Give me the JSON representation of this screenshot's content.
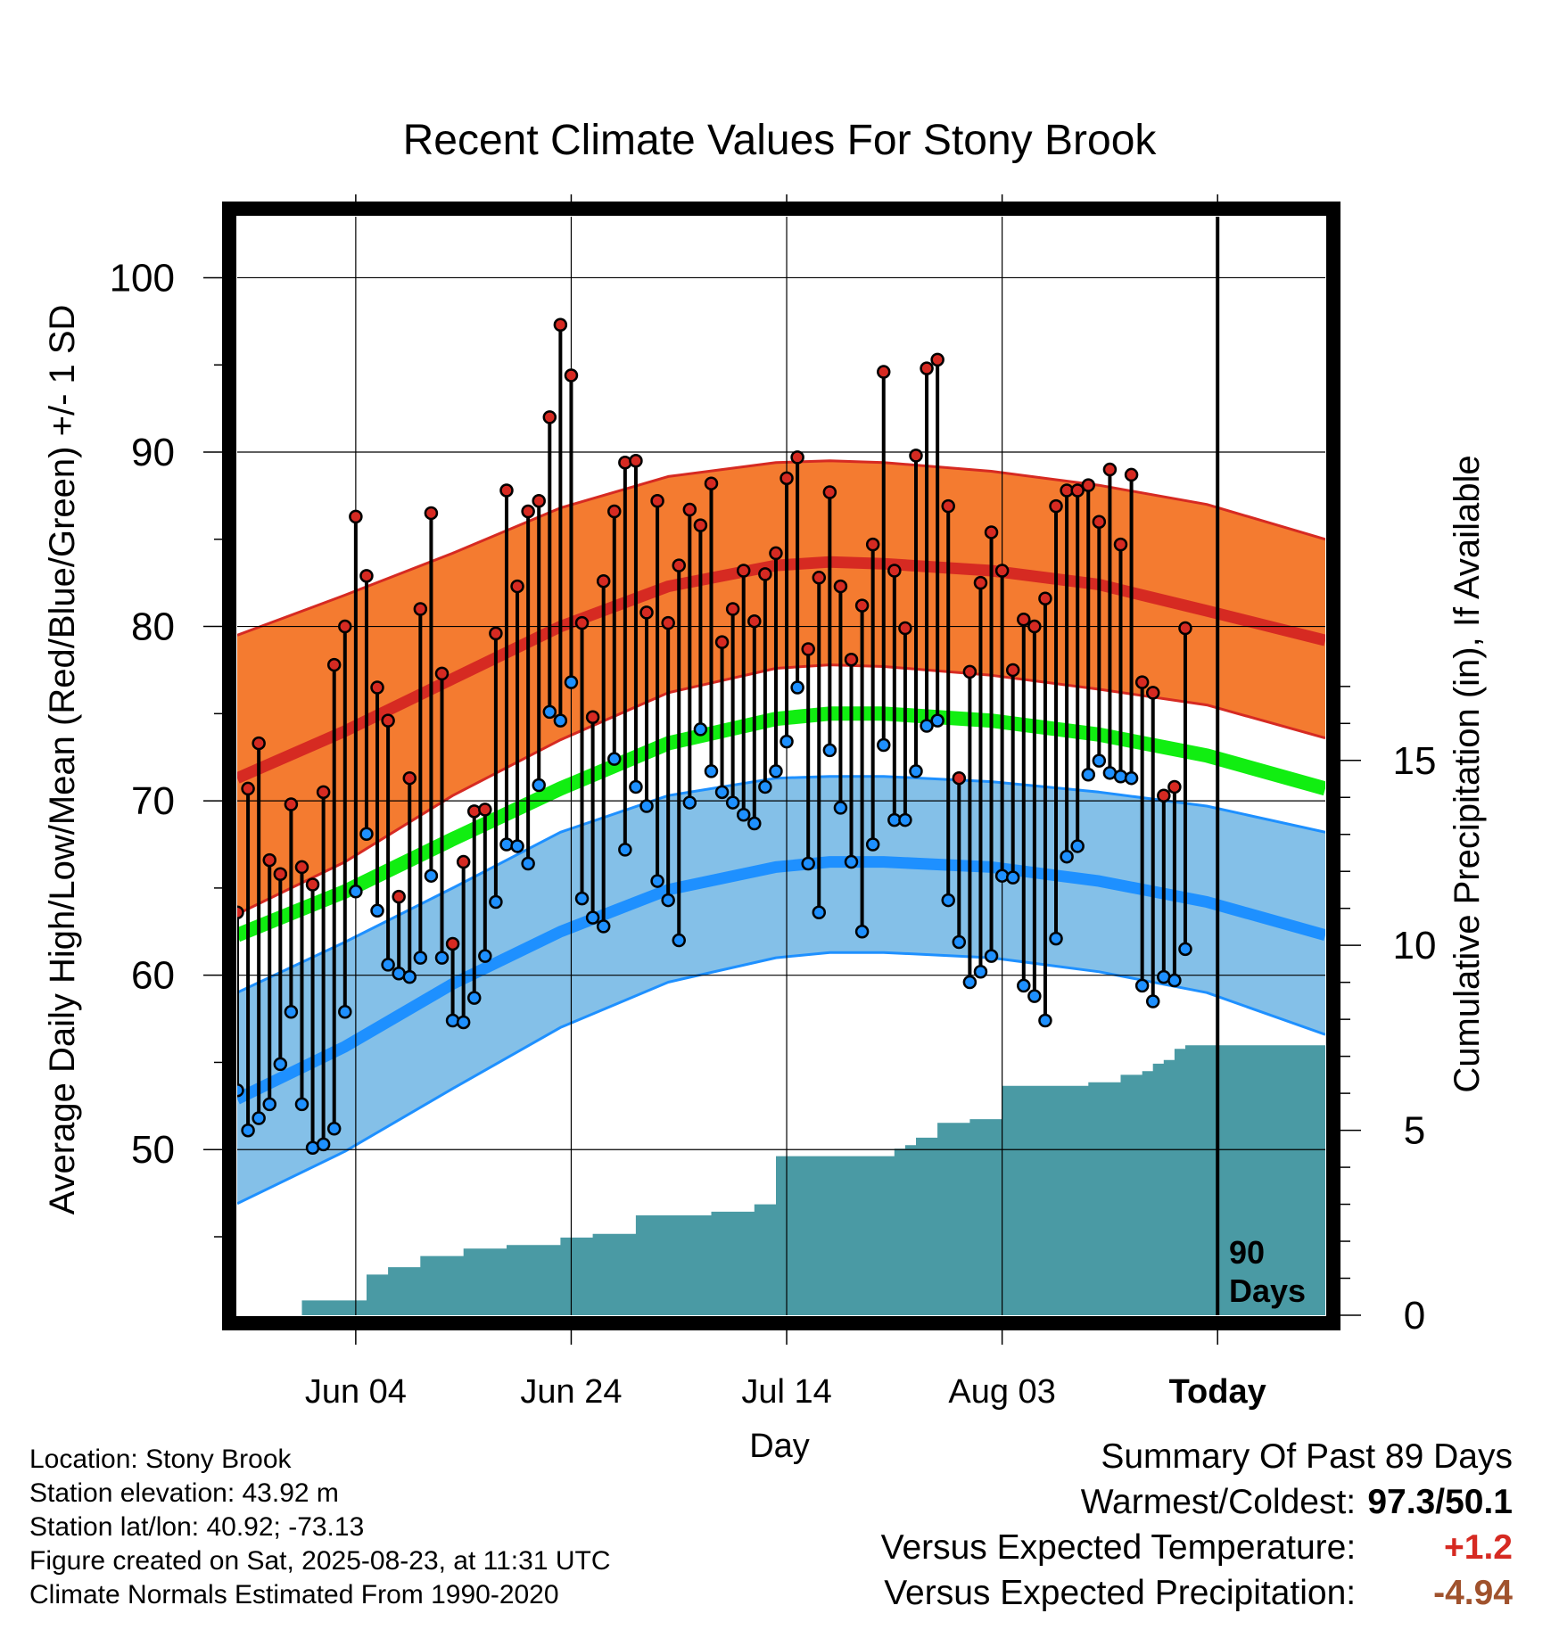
{
  "chart_data": {
    "type": "line",
    "title": "Recent Climate Values For Stony Brook",
    "xlabel": "Day",
    "ylabel": "Average Daily High/Low/Mean (Red/Blue/Green) +/- 1 SD",
    "y2label": "Cumulative Precipitation (in), If Available",
    "x_tick_labels": [
      "Jun 04",
      "Jun 24",
      "Jul 14",
      "Aug 03",
      "Today"
    ],
    "x_tick_dates": [
      "2025-06-04",
      "2025-06-24",
      "2025-07-14",
      "2025-08-03",
      "2025-08-23"
    ],
    "x_range": [
      "2025-05-24",
      "2025-09-02"
    ],
    "y_ticks": [
      50,
      60,
      70,
      80,
      90,
      100
    ],
    "y_range": [
      40.5,
      103.5
    ],
    "y2_ticks": [
      0,
      5,
      10,
      15
    ],
    "y2_range": [
      0,
      29.7
    ],
    "grid": true,
    "today_marker": {
      "date": "2025-08-23",
      "label_line1": "90",
      "label_line2": "Days"
    },
    "colors": {
      "high_band": "#f47b30",
      "high_band_edge": "#d62a22",
      "high_mean": "#d62a22",
      "mean_line": "#11ee11",
      "low_band": "#84c0e8",
      "low_band_edge": "#1e90ff",
      "low_mean": "#1e90ff",
      "precip": "#4a9aa4",
      "high_marker": "#d62a22",
      "low_marker": "#1e90ff"
    },
    "normals": {
      "dates": [
        "2025-05-24",
        "2025-06-03",
        "2025-06-13",
        "2025-06-23",
        "2025-07-03",
        "2025-07-13",
        "2025-07-18",
        "2025-07-23",
        "2025-08-02",
        "2025-08-12",
        "2025-08-22",
        "2025-09-02"
      ],
      "high_mean": [
        71.3,
        74.0,
        77.0,
        80.0,
        82.3,
        83.5,
        83.7,
        83.6,
        83.2,
        82.4,
        80.9,
        79.2
      ],
      "high_sd_upper": [
        79.5,
        81.8,
        84.2,
        86.8,
        88.6,
        89.4,
        89.5,
        89.4,
        88.9,
        88.1,
        87.0,
        85.0
      ],
      "high_sd_lower": [
        63.5,
        66.5,
        70.3,
        73.5,
        76.2,
        77.6,
        77.8,
        77.7,
        77.2,
        76.4,
        75.5,
        73.6
      ],
      "mean": [
        62.3,
        64.8,
        67.8,
        70.7,
        73.3,
        74.7,
        75.0,
        75.0,
        74.6,
        73.8,
        72.6,
        70.7
      ],
      "low_mean": [
        52.9,
        55.9,
        59.5,
        62.5,
        64.9,
        66.2,
        66.5,
        66.5,
        66.2,
        65.4,
        64.2,
        62.3
      ],
      "low_sd_upper": [
        59.0,
        61.9,
        65.0,
        68.2,
        70.3,
        71.3,
        71.4,
        71.4,
        71.1,
        70.5,
        69.7,
        68.2
      ],
      "low_sd_lower": [
        46.9,
        49.9,
        53.5,
        57.0,
        59.6,
        61.0,
        61.3,
        61.3,
        61.0,
        60.2,
        59.0,
        56.6
      ]
    },
    "series": [
      {
        "name": "High",
        "values": [
          63.6,
          70.7,
          73.3,
          66.6,
          65.8,
          69.8,
          66.2,
          65.2,
          70.5,
          77.8,
          80.0,
          86.3,
          82.9,
          76.5,
          74.6,
          64.5,
          71.3,
          81.0,
          86.5,
          77.3,
          61.8,
          66.5,
          69.4,
          69.5,
          79.6,
          87.8,
          82.3,
          86.6,
          87.2,
          92.0,
          97.3,
          94.4,
          80.2,
          74.8,
          82.6,
          86.6,
          89.4,
          89.5,
          80.8,
          87.2,
          80.2,
          83.5,
          86.7,
          85.8,
          88.2,
          79.1,
          81.0,
          83.2,
          80.3,
          83.0,
          84.2,
          88.5,
          89.7,
          78.7,
          82.8,
          87.7,
          82.3,
          78.1,
          81.2,
          84.7,
          94.6,
          83.2,
          79.9,
          89.8,
          94.8,
          95.3,
          86.9,
          71.3,
          77.4,
          82.5,
          85.4,
          83.2,
          77.5,
          80.4,
          80.0,
          81.6,
          86.9,
          87.8,
          87.8,
          88.1,
          86.0,
          89.0,
          84.7,
          88.7,
          76.8,
          76.2,
          70.3,
          70.8,
          79.9
        ]
      },
      {
        "name": "Low",
        "values": [
          53.4,
          51.1,
          51.8,
          52.6,
          54.9,
          57.9,
          52.6,
          50.1,
          50.3,
          51.2,
          57.9,
          64.8,
          68.1,
          63.7,
          60.6,
          60.1,
          59.9,
          61.0,
          65.7,
          61.0,
          57.4,
          57.3,
          58.7,
          61.1,
          64.2,
          67.5,
          67.4,
          66.4,
          70.9,
          75.1,
          74.6,
          76.8,
          64.4,
          63.3,
          62.8,
          72.4,
          67.2,
          70.8,
          69.7,
          65.4,
          64.3,
          62.0,
          69.9,
          74.1,
          71.7,
          70.5,
          69.9,
          69.2,
          68.7,
          70.8,
          71.7,
          73.4,
          76.5,
          66.4,
          63.6,
          72.9,
          69.6,
          66.5,
          62.5,
          67.5,
          73.2,
          68.9,
          68.9,
          71.7,
          74.3,
          74.6,
          64.3,
          61.9,
          59.6,
          60.2,
          61.1,
          65.7,
          65.6,
          59.4,
          58.8,
          57.4,
          62.1,
          66.8,
          67.4,
          71.5,
          72.3,
          71.6,
          71.4,
          71.3,
          59.4,
          58.5,
          59.9,
          59.7,
          61.5
        ]
      },
      {
        "name": "Cumulative Precipitation",
        "dates": [
          "2025-05-24",
          "2025-05-29",
          "2025-05-30",
          "2025-06-05",
          "2025-06-07",
          "2025-06-10",
          "2025-06-14",
          "2025-06-18",
          "2025-06-23",
          "2025-06-26",
          "2025-06-30",
          "2025-07-07",
          "2025-07-11",
          "2025-07-13",
          "2025-07-24",
          "2025-07-25",
          "2025-07-26",
          "2025-07-28",
          "2025-07-31",
          "2025-08-03",
          "2025-08-11",
          "2025-08-14",
          "2025-08-16",
          "2025-08-17",
          "2025-08-18",
          "2025-08-19",
          "2025-08-20",
          "2025-08-22",
          "2025-09-02"
        ],
        "values": [
          0,
          0,
          0.4,
          1.1,
          1.3,
          1.6,
          1.8,
          1.9,
          2.1,
          2.2,
          2.7,
          2.8,
          3.0,
          4.3,
          4.5,
          4.6,
          4.8,
          5.2,
          5.3,
          6.2,
          6.3,
          6.5,
          6.6,
          6.8,
          6.9,
          7.2,
          7.3,
          7.3,
          7.3
        ]
      }
    ]
  },
  "info": {
    "location": "Location: Stony Brook",
    "elevation": "Station elevation: 43.92 m",
    "latlon": "Station lat/lon: 40.92; -73.13",
    "created": "Figure created on Sat, 2025-08-23, at 11:31 UTC",
    "normals": "Climate Normals Estimated From 1990-2020"
  },
  "summary": {
    "heading": "Summary Of Past 89 Days",
    "warm_cold_label": "Warmest/Coldest:",
    "warm_cold_value": "97.3/50.1",
    "temp_label": "Versus Expected Temperature:",
    "temp_value": "+1.2",
    "temp_color": "#d62a22",
    "precip_label": "Versus Expected Precipitation:",
    "precip_value": "-4.94",
    "precip_color": "#a0522d"
  }
}
